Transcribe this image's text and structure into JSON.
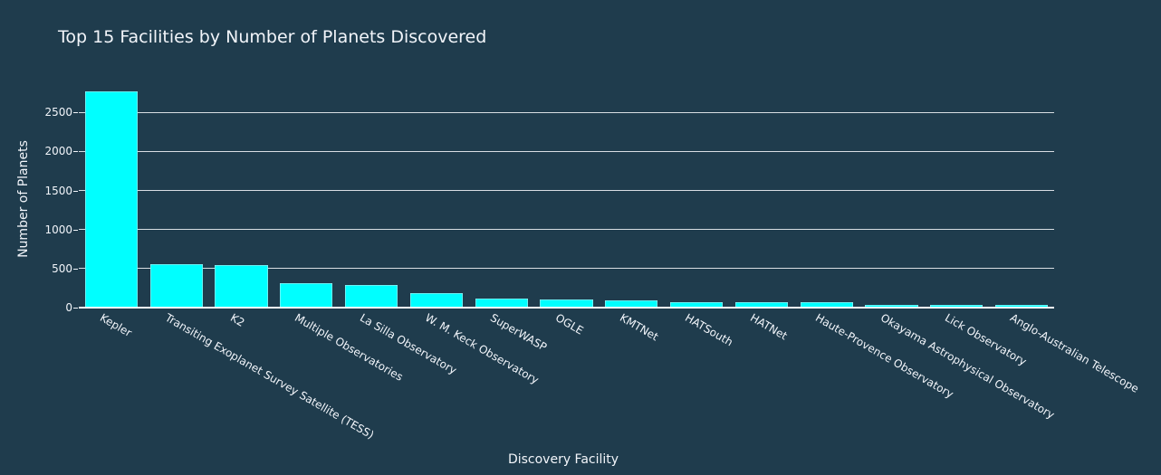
{
  "chart_data": {
    "type": "bar",
    "title": "Top 15 Facilities by Number of Planets Discovered",
    "xlabel": "Discovery Facility",
    "ylabel": "Number of Planets",
    "categories": [
      "Kepler",
      "Transiting Exoplanet Survey Satellite (TESS)",
      "K2",
      "Multiple Observatories",
      "La Silla Observatory",
      "W. M. Keck Observatory",
      "SuperWASP",
      "OGLE",
      "KMTNet",
      "HATSouth",
      "HATNet",
      "Haute-Provence Observatory",
      "Okayama Astrophysical Observatory",
      "Lick Observatory",
      "Anglo-Australian Telescope"
    ],
    "values": [
      2770,
      558,
      548,
      310,
      285,
      190,
      112,
      103,
      92,
      70,
      66,
      66,
      33,
      33,
      32
    ],
    "ylim": [
      0,
      2920
    ],
    "yticks": [
      0,
      500,
      1000,
      1500,
      2000,
      2500
    ],
    "ytick_labels": [
      "0",
      "500",
      "1000",
      "1500",
      "2000",
      "2500"
    ],
    "grid": true,
    "legend": false,
    "bar_color": "#00ffff",
    "background_color": "#1f3c4d",
    "xtick_rotation": 30
  }
}
